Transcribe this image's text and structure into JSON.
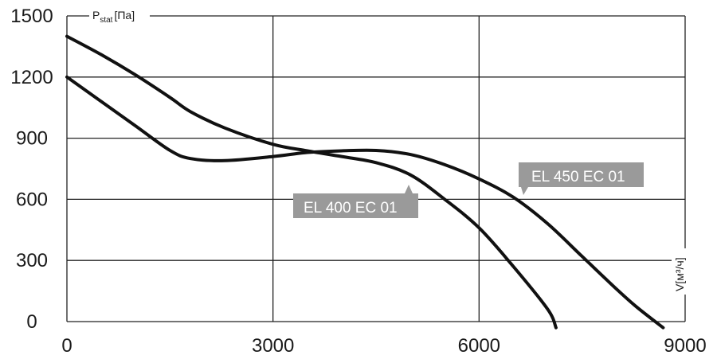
{
  "chart_data": {
    "type": "line",
    "ylabel_main": "P",
    "ylabel_sub": "stat",
    "ylabel_unit": "[Па]",
    "xlabel": "V[м³/ч]",
    "xlim": [
      0,
      9000
    ],
    "ylim": [
      0,
      1500
    ],
    "x_ticks": [
      "0",
      "3000",
      "6000",
      "9000"
    ],
    "y_ticks": [
      "0",
      "300",
      "600",
      "900",
      "1200",
      "1500"
    ],
    "grid": true,
    "series": [
      {
        "name": "EL 400 EC 01",
        "color": "#111111",
        "points": [
          [
            0,
            1200
          ],
          [
            500,
            1080
          ],
          [
            1000,
            960
          ],
          [
            1500,
            840
          ],
          [
            1800,
            800
          ],
          [
            2300,
            790
          ],
          [
            3000,
            810
          ],
          [
            3500,
            830
          ],
          [
            4000,
            838
          ],
          [
            4500,
            840
          ],
          [
            5000,
            820
          ],
          [
            5500,
            770
          ],
          [
            6000,
            700
          ],
          [
            6500,
            610
          ],
          [
            7000,
            480
          ],
          [
            7500,
            320
          ],
          [
            8000,
            160
          ],
          [
            8300,
            70
          ],
          [
            8680,
            -30
          ]
        ]
      },
      {
        "name": "EL 450 EC 01",
        "color": "#111111",
        "points": [
          [
            0,
            1400
          ],
          [
            500,
            1310
          ],
          [
            1000,
            1210
          ],
          [
            1500,
            1100
          ],
          [
            1800,
            1030
          ],
          [
            2300,
            950
          ],
          [
            3000,
            870
          ],
          [
            3500,
            838
          ],
          [
            4000,
            810
          ],
          [
            4500,
            780
          ],
          [
            5000,
            720
          ],
          [
            5500,
            600
          ],
          [
            6000,
            460
          ],
          [
            6500,
            270
          ],
          [
            7000,
            60
          ],
          [
            7120,
            -30
          ]
        ]
      }
    ],
    "callouts": [
      {
        "text": "EL 450 EC 01",
        "box_color": "#9a9a9a"
      },
      {
        "text": "EL 400 EC 01",
        "box_color": "#9a9a9a"
      }
    ]
  }
}
